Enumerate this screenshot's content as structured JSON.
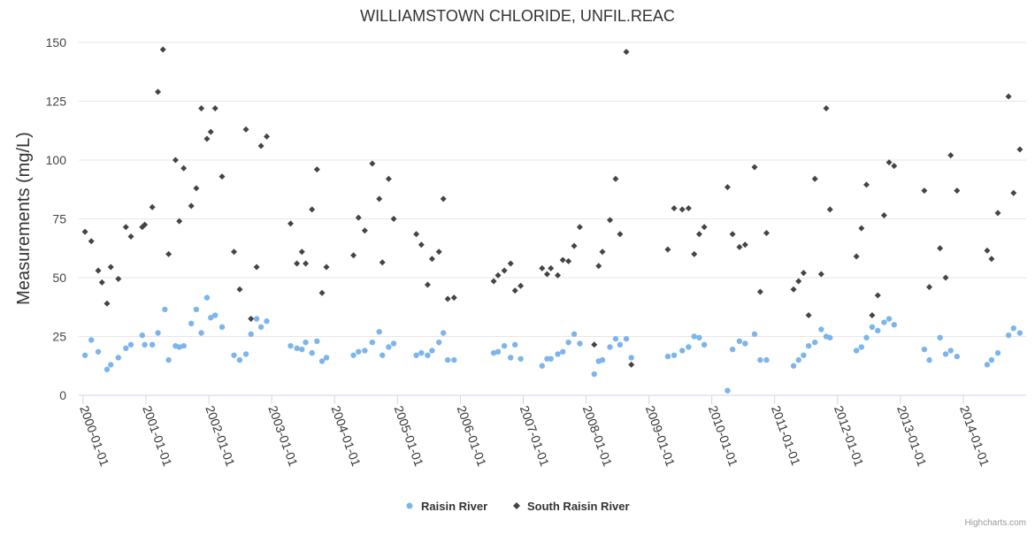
{
  "chart_data": {
    "type": "scatter",
    "title": "WILLIAMSTOWN CHLORIDE, UNFIL.REAC",
    "xlabel": "",
    "ylabel": "Measurements (mg/L)",
    "ylim": [
      0,
      150
    ],
    "yticks": [
      0,
      25,
      50,
      75,
      100,
      125,
      150
    ],
    "xlim": [
      1999.93,
      2015.0
    ],
    "xticks": [
      {
        "value": 2000.0,
        "label": "2000-01-01"
      },
      {
        "value": 2001.0,
        "label": "2001-01-01"
      },
      {
        "value": 2002.0,
        "label": "2002-01-01"
      },
      {
        "value": 2003.0,
        "label": "2003-01-01"
      },
      {
        "value": 2004.0,
        "label": "2004-01-01"
      },
      {
        "value": 2005.0,
        "label": "2005-01-01"
      },
      {
        "value": 2006.0,
        "label": "2006-01-01"
      },
      {
        "value": 2007.0,
        "label": "2007-01-01"
      },
      {
        "value": 2008.0,
        "label": "2008-01-01"
      },
      {
        "value": 2009.0,
        "label": "2009-01-01"
      },
      {
        "value": 2010.0,
        "label": "2010-01-01"
      },
      {
        "value": 2011.0,
        "label": "2011-01-01"
      },
      {
        "value": 2012.0,
        "label": "2012-01-01"
      },
      {
        "value": 2013.0,
        "label": "2013-01-01"
      },
      {
        "value": 2014.0,
        "label": "2014-01-01"
      }
    ],
    "grid": "horizontal",
    "legend_position": "bottom-center",
    "credit": "Highcharts.com",
    "series": [
      {
        "name": "Raisin River",
        "marker": "circle",
        "color": "#7cb5ec",
        "points": [
          [
            2000.03,
            17
          ],
          [
            2000.13,
            23.5
          ],
          [
            2000.24,
            18.5
          ],
          [
            2000.38,
            11
          ],
          [
            2000.44,
            13
          ],
          [
            2000.56,
            16
          ],
          [
            2000.68,
            20
          ],
          [
            2000.76,
            21.5
          ],
          [
            2000.94,
            25.5
          ],
          [
            2000.98,
            21.5
          ],
          [
            2001.1,
            21.5
          ],
          [
            2001.19,
            26.5
          ],
          [
            2001.3,
            36.5
          ],
          [
            2001.36,
            15
          ],
          [
            2001.47,
            21
          ],
          [
            2001.53,
            20.5
          ],
          [
            2001.6,
            21
          ],
          [
            2001.72,
            30.5
          ],
          [
            2001.8,
            36.5
          ],
          [
            2001.88,
            26.5
          ],
          [
            2001.97,
            41.5
          ],
          [
            2002.03,
            33
          ],
          [
            2002.1,
            34
          ],
          [
            2002.21,
            29
          ],
          [
            2002.4,
            17
          ],
          [
            2002.49,
            15
          ],
          [
            2002.59,
            17.5
          ],
          [
            2002.67,
            26
          ],
          [
            2002.76,
            32.5
          ],
          [
            2002.83,
            29
          ],
          [
            2002.92,
            31.5
          ],
          [
            2003.3,
            21
          ],
          [
            2003.4,
            20
          ],
          [
            2003.48,
            19.5
          ],
          [
            2003.54,
            22.5
          ],
          [
            2003.64,
            18
          ],
          [
            2003.72,
            23
          ],
          [
            2003.8,
            14.5
          ],
          [
            2003.87,
            16
          ],
          [
            2004.3,
            17
          ],
          [
            2004.38,
            18.5
          ],
          [
            2004.48,
            19
          ],
          [
            2004.6,
            22.5
          ],
          [
            2004.71,
            27
          ],
          [
            2004.76,
            17
          ],
          [
            2004.86,
            20.5
          ],
          [
            2004.94,
            22
          ],
          [
            2005.3,
            17
          ],
          [
            2005.38,
            18
          ],
          [
            2005.48,
            17
          ],
          [
            2005.55,
            19
          ],
          [
            2005.66,
            22.5
          ],
          [
            2005.73,
            26.5
          ],
          [
            2005.8,
            15
          ],
          [
            2005.9,
            15
          ],
          [
            2006.53,
            18
          ],
          [
            2006.6,
            18.5
          ],
          [
            2006.7,
            21
          ],
          [
            2006.8,
            16
          ],
          [
            2006.87,
            21.5
          ],
          [
            2006.96,
            15.5
          ],
          [
            2007.3,
            12.5
          ],
          [
            2007.38,
            15.5
          ],
          [
            2007.44,
            15.5
          ],
          [
            2007.55,
            17.5
          ],
          [
            2007.63,
            18.5
          ],
          [
            2007.72,
            22.5
          ],
          [
            2007.81,
            26
          ],
          [
            2007.9,
            22
          ],
          [
            2008.13,
            9
          ],
          [
            2008.2,
            14.5
          ],
          [
            2008.26,
            15
          ],
          [
            2008.38,
            20.5
          ],
          [
            2008.47,
            24
          ],
          [
            2008.54,
            21.5
          ],
          [
            2008.64,
            24
          ],
          [
            2008.72,
            16
          ],
          [
            2009.3,
            16.5
          ],
          [
            2009.4,
            17
          ],
          [
            2009.53,
            19
          ],
          [
            2009.63,
            20.5
          ],
          [
            2009.72,
            25
          ],
          [
            2009.8,
            24.5
          ],
          [
            2009.88,
            21.5
          ],
          [
            2010.25,
            2
          ],
          [
            2010.33,
            19.5
          ],
          [
            2010.44,
            23
          ],
          [
            2010.53,
            22
          ],
          [
            2010.68,
            26
          ],
          [
            2010.77,
            15
          ],
          [
            2010.87,
            15
          ],
          [
            2011.3,
            12.5
          ],
          [
            2011.38,
            15
          ],
          [
            2011.46,
            17
          ],
          [
            2011.54,
            21
          ],
          [
            2011.64,
            22.5
          ],
          [
            2011.74,
            28
          ],
          [
            2011.82,
            25
          ],
          [
            2011.88,
            24.5
          ],
          [
            2012.3,
            19
          ],
          [
            2012.38,
            20.5
          ],
          [
            2012.46,
            24.5
          ],
          [
            2012.55,
            29
          ],
          [
            2012.64,
            27.5
          ],
          [
            2012.74,
            31
          ],
          [
            2012.82,
            32.5
          ],
          [
            2012.9,
            30
          ],
          [
            2013.38,
            19.5
          ],
          [
            2013.46,
            15
          ],
          [
            2013.63,
            24.5
          ],
          [
            2013.72,
            17.5
          ],
          [
            2013.8,
            19
          ],
          [
            2013.9,
            16.5
          ],
          [
            2014.38,
            13
          ],
          [
            2014.45,
            15
          ],
          [
            2014.55,
            18
          ],
          [
            2014.72,
            25.5
          ],
          [
            2014.8,
            28.5
          ],
          [
            2014.9,
            26.5
          ]
        ]
      },
      {
        "name": "South Raisin River",
        "marker": "diamond",
        "color": "#434348",
        "points": [
          [
            2000.03,
            69.5
          ],
          [
            2000.13,
            65.5
          ],
          [
            2000.24,
            53
          ],
          [
            2000.3,
            48
          ],
          [
            2000.38,
            39
          ],
          [
            2000.44,
            54.5
          ],
          [
            2000.56,
            49.5
          ],
          [
            2000.68,
            71.5
          ],
          [
            2000.76,
            67.5
          ],
          [
            2000.94,
            71.5
          ],
          [
            2000.98,
            72.5
          ],
          [
            2001.1,
            80
          ],
          [
            2001.19,
            129
          ],
          [
            2001.27,
            147
          ],
          [
            2001.36,
            60
          ],
          [
            2001.47,
            100
          ],
          [
            2001.53,
            74
          ],
          [
            2001.6,
            96.5
          ],
          [
            2001.72,
            80.5
          ],
          [
            2001.8,
            88
          ],
          [
            2001.88,
            122
          ],
          [
            2001.97,
            109
          ],
          [
            2002.03,
            112
          ],
          [
            2002.1,
            122
          ],
          [
            2002.21,
            93
          ],
          [
            2002.4,
            61
          ],
          [
            2002.49,
            45
          ],
          [
            2002.59,
            113
          ],
          [
            2002.67,
            32.5
          ],
          [
            2002.76,
            54.5
          ],
          [
            2002.83,
            106
          ],
          [
            2002.92,
            110
          ],
          [
            2003.3,
            73
          ],
          [
            2003.4,
            56
          ],
          [
            2003.48,
            61
          ],
          [
            2003.54,
            56
          ],
          [
            2003.64,
            79
          ],
          [
            2003.72,
            96
          ],
          [
            2003.8,
            43.5
          ],
          [
            2003.87,
            54.5
          ],
          [
            2004.3,
            59.5
          ],
          [
            2004.38,
            75.5
          ],
          [
            2004.48,
            70
          ],
          [
            2004.6,
            98.5
          ],
          [
            2004.71,
            83.5
          ],
          [
            2004.76,
            56.5
          ],
          [
            2004.86,
            92
          ],
          [
            2004.94,
            75
          ],
          [
            2005.3,
            68.5
          ],
          [
            2005.38,
            64
          ],
          [
            2005.48,
            47
          ],
          [
            2005.55,
            58
          ],
          [
            2005.66,
            61
          ],
          [
            2005.73,
            83.5
          ],
          [
            2005.8,
            41
          ],
          [
            2005.9,
            41.5
          ],
          [
            2006.53,
            48.5
          ],
          [
            2006.6,
            51
          ],
          [
            2006.7,
            53
          ],
          [
            2006.8,
            56
          ],
          [
            2006.87,
            44.5
          ],
          [
            2006.96,
            46.5
          ],
          [
            2007.3,
            54
          ],
          [
            2007.38,
            51.5
          ],
          [
            2007.44,
            54
          ],
          [
            2007.55,
            51
          ],
          [
            2007.63,
            57.5
          ],
          [
            2007.72,
            57
          ],
          [
            2007.81,
            63.5
          ],
          [
            2007.9,
            71.5
          ],
          [
            2008.13,
            21.5
          ],
          [
            2008.2,
            55
          ],
          [
            2008.26,
            61
          ],
          [
            2008.38,
            74.5
          ],
          [
            2008.47,
            92
          ],
          [
            2008.54,
            68.5
          ],
          [
            2008.64,
            146
          ],
          [
            2008.72,
            13
          ],
          [
            2009.3,
            62
          ],
          [
            2009.4,
            79.5
          ],
          [
            2009.53,
            79
          ],
          [
            2009.63,
            79.5
          ],
          [
            2009.72,
            60
          ],
          [
            2009.8,
            68.5
          ],
          [
            2009.88,
            71.5
          ],
          [
            2010.25,
            88.5
          ],
          [
            2010.33,
            68.5
          ],
          [
            2010.44,
            63
          ],
          [
            2010.53,
            64
          ],
          [
            2010.68,
            97
          ],
          [
            2010.77,
            44
          ],
          [
            2010.87,
            69
          ],
          [
            2011.3,
            45
          ],
          [
            2011.38,
            48.5
          ],
          [
            2011.46,
            52
          ],
          [
            2011.54,
            34
          ],
          [
            2011.64,
            92
          ],
          [
            2011.74,
            51.5
          ],
          [
            2011.82,
            122
          ],
          [
            2011.88,
            79
          ],
          [
            2012.3,
            59
          ],
          [
            2012.38,
            71
          ],
          [
            2012.46,
            89.5
          ],
          [
            2012.55,
            34
          ],
          [
            2012.64,
            42.5
          ],
          [
            2012.74,
            76.5
          ],
          [
            2012.82,
            99
          ],
          [
            2012.9,
            97.5
          ],
          [
            2013.38,
            87
          ],
          [
            2013.46,
            46
          ],
          [
            2013.63,
            62.5
          ],
          [
            2013.72,
            50
          ],
          [
            2013.8,
            102
          ],
          [
            2013.9,
            87
          ],
          [
            2014.38,
            61.5
          ],
          [
            2014.45,
            58
          ],
          [
            2014.55,
            77.5
          ],
          [
            2014.72,
            127
          ],
          [
            2014.8,
            86
          ],
          [
            2014.9,
            104.5
          ]
        ]
      }
    ]
  }
}
